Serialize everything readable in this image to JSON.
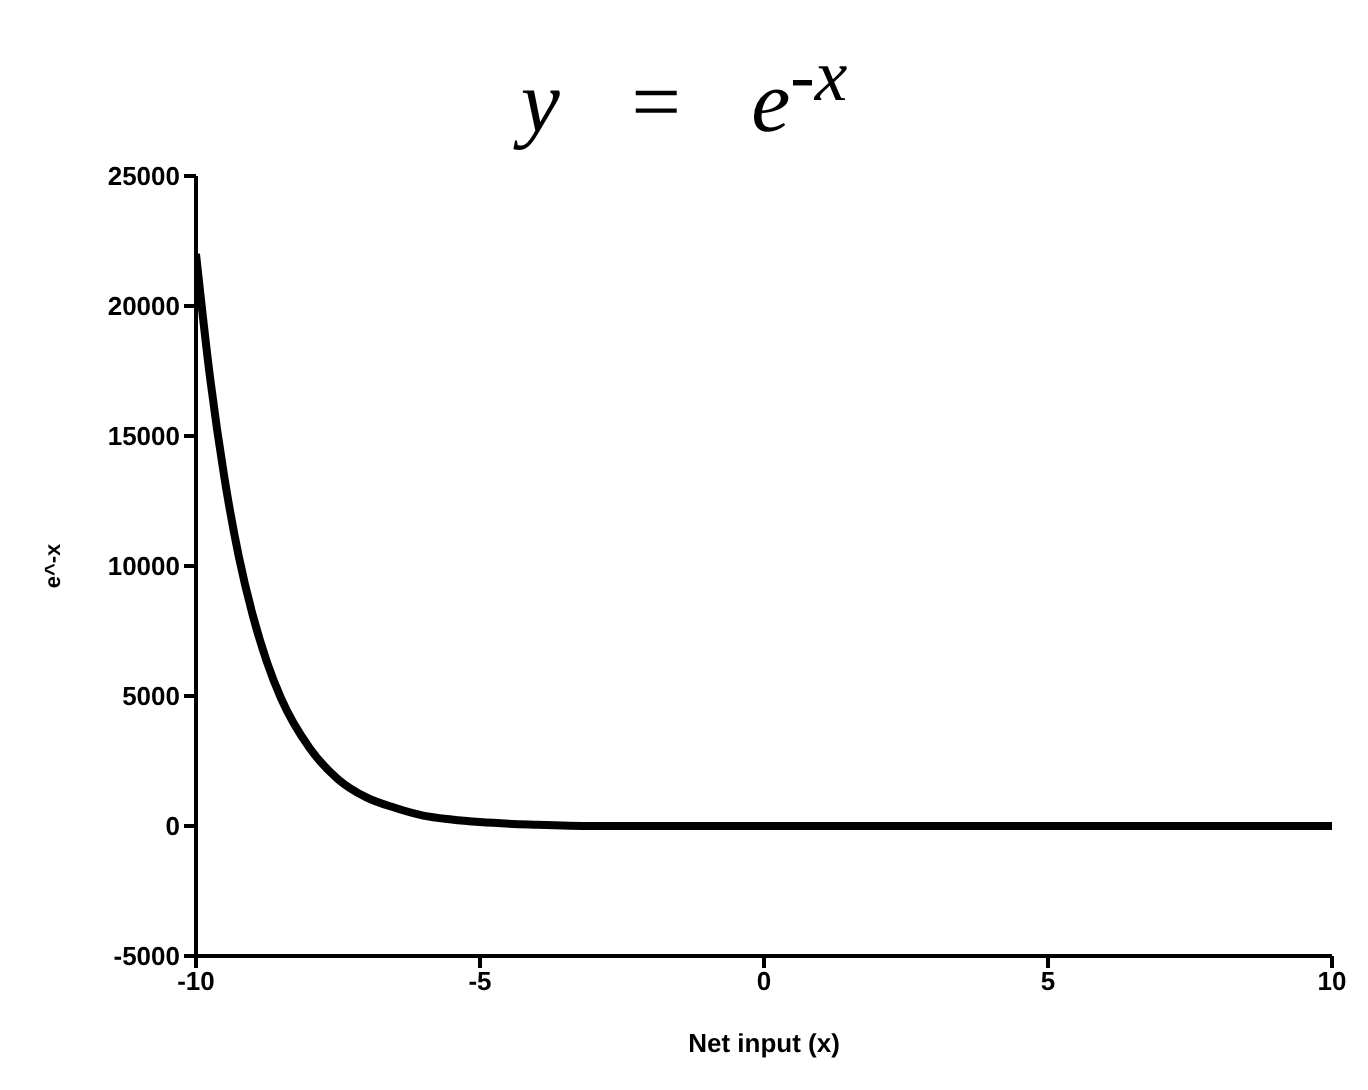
{
  "chart_data": {
    "type": "line",
    "title": "y = e$^{-x}$",
    "xlabel": "Net input (x)",
    "ylabel": "e^-x",
    "x": [
      -10,
      -9.75,
      -9.5,
      -9.25,
      -9,
      -8.75,
      -8.5,
      -8,
      -7.5,
      -7,
      -6.5,
      -6,
      -5.5,
      -5,
      -4,
      -3,
      -2,
      0,
      5,
      10
    ],
    "series": [
      {
        "color": "#000000",
        "values": [
          22000,
          17200,
          13400,
          10400,
          8100,
          6300,
          4900,
          3000,
          1800,
          1100,
          700,
          400,
          250,
          150,
          50,
          0,
          0,
          0,
          0,
          0
        ]
      }
    ],
    "xlim": [
      -10,
      10
    ],
    "xticks": [
      -10,
      -5,
      0,
      5,
      10
    ],
    "ylim": [
      -5000,
      25000
    ],
    "yticks": [
      -5000,
      0,
      5000,
      10000,
      15000,
      20000,
      25000
    ],
    "grid": false,
    "legend": false,
    "marker": "none",
    "line_style": "solid"
  }
}
